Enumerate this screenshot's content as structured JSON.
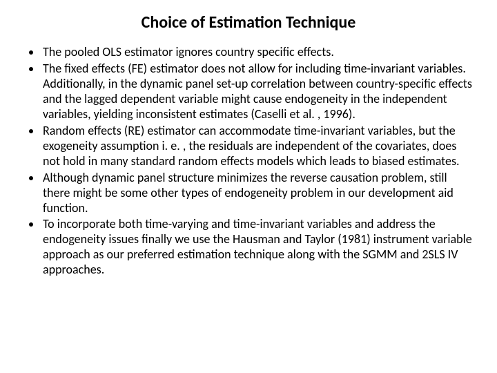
{
  "title": "Choice of Estimation Technique",
  "title_fontsize": 24,
  "title_weight": 700,
  "body_fontsize": 18,
  "text_color": "#000000",
  "background_color": "#ffffff",
  "bullets": [
    "The pooled OLS estimator ignores country specific effects.",
    "The fixed effects (FE)  estimator does not allow for including time-invariant variables. Additionally, in the dynamic panel set-up correlation between country-specific effects and the lagged dependent variable might cause endogeneity in the independent variables, yielding inconsistent estimates (Caselli et al. , 1996).",
    "Random effects (RE) estimator can accommodate time-invariant variables, but the exogeneity assumption i. e. , the residuals are independent of the covariates, does not hold in many standard random effects models which leads to biased estimates.",
    "Although dynamic panel structure minimizes the reverse causation problem, still there might be some other types of endogeneity problem in our development aid function.",
    "To incorporate both time-varying and time-invariant variables and address the endogeneity issues finally we use the Hausman and Taylor (1981) instrument variable approach as our preferred estimation technique along with the SGMM and 2SLS IV approaches."
  ]
}
